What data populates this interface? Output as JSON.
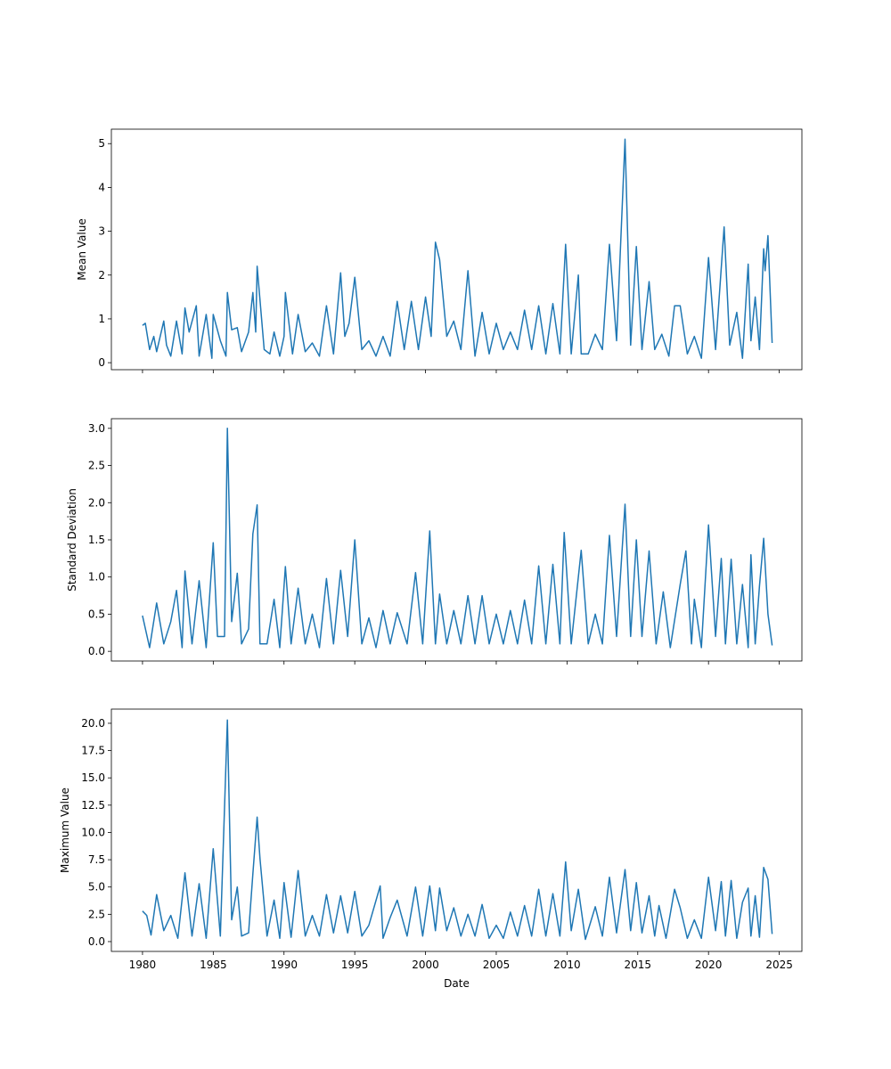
{
  "chart_data": [
    {
      "type": "line",
      "ylabel": "Mean Value",
      "xlabel": "",
      "xlim": [
        1977.8,
        2026.6
      ],
      "ylim": [
        -0.16,
        5.33
      ],
      "yticks": [
        0,
        1,
        2,
        3,
        4,
        5
      ],
      "ytick_labels": [
        "0",
        "1",
        "2",
        "3",
        "4",
        "5"
      ],
      "color": "#1f77b4",
      "x": [
        1980.0,
        1980.2,
        1980.5,
        1980.8,
        1981.0,
        1981.5,
        1981.7,
        1982.0,
        1982.4,
        1982.8,
        1983.0,
        1983.3,
        1983.8,
        1984.0,
        1984.5,
        1984.9,
        1985.0,
        1985.5,
        1985.9,
        1986.0,
        1986.3,
        1986.7,
        1987.0,
        1987.5,
        1987.8,
        1988.0,
        1988.1,
        1988.6,
        1989.0,
        1989.3,
        1989.7,
        1990.0,
        1990.1,
        1990.6,
        1991.0,
        1991.5,
        1992.0,
        1992.5,
        1993.0,
        1993.5,
        1994.0,
        1994.3,
        1994.6,
        1995.0,
        1995.5,
        1996.0,
        1996.5,
        1997.0,
        1997.5,
        1998.0,
        1998.5,
        1999.0,
        1999.5,
        2000.0,
        2000.4,
        2000.7,
        2001.0,
        2001.5,
        2002.0,
        2002.5,
        2003.0,
        2003.5,
        2004.0,
        2004.5,
        2005.0,
        2005.5,
        2006.0,
        2006.5,
        2007.0,
        2007.5,
        2008.0,
        2008.5,
        2009.0,
        2009.5,
        2009.9,
        2010.3,
        2010.8,
        2011.0,
        2011.5,
        2012.0,
        2012.5,
        2013.0,
        2013.5,
        2014.1,
        2014.5,
        2014.9,
        2015.3,
        2015.8,
        2016.2,
        2016.7,
        2017.2,
        2017.6,
        2018.0,
        2018.5,
        2019.0,
        2019.5,
        2020.0,
        2020.5,
        2021.1,
        2021.5,
        2022.0,
        2022.4,
        2022.8,
        2023.0,
        2023.3,
        2023.6,
        2023.9,
        2024.0,
        2024.2,
        2024.5
      ],
      "y": [
        0.85,
        0.9,
        0.3,
        0.6,
        0.25,
        0.95,
        0.4,
        0.15,
        0.95,
        0.2,
        1.25,
        0.7,
        1.3,
        0.15,
        1.1,
        0.1,
        1.1,
        0.5,
        0.15,
        1.6,
        0.75,
        0.8,
        0.25,
        0.7,
        1.6,
        0.7,
        2.2,
        0.3,
        0.2,
        0.7,
        0.15,
        0.6,
        1.6,
        0.2,
        1.1,
        0.25,
        0.45,
        0.15,
        1.3,
        0.2,
        2.05,
        0.6,
        0.9,
        1.95,
        0.3,
        0.5,
        0.15,
        0.6,
        0.15,
        1.4,
        0.3,
        1.4,
        0.3,
        1.5,
        0.6,
        2.75,
        2.35,
        0.6,
        0.95,
        0.3,
        2.1,
        0.15,
        1.15,
        0.2,
        0.9,
        0.3,
        0.7,
        0.3,
        1.2,
        0.3,
        1.3,
        0.2,
        1.35,
        0.2,
        2.7,
        0.2,
        2.0,
        0.2,
        0.2,
        0.65,
        0.3,
        2.7,
        0.5,
        5.1,
        0.4,
        2.65,
        0.3,
        1.85,
        0.3,
        0.65,
        0.15,
        1.3,
        1.3,
        0.2,
        0.6,
        0.1,
        2.4,
        0.3,
        3.1,
        0.4,
        1.15,
        0.1,
        2.25,
        0.5,
        1.5,
        0.3,
        2.6,
        2.1,
        2.9,
        0.45
      ]
    },
    {
      "type": "line",
      "ylabel": "Standard Deviation",
      "xlabel": "",
      "xlim": [
        1977.8,
        2026.6
      ],
      "ylim": [
        -0.13,
        3.13
      ],
      "yticks": [
        0,
        0.5,
        1,
        1.5,
        2,
        2.5,
        3
      ],
      "ytick_labels": [
        "0.0",
        "0.5",
        "1.0",
        "1.5",
        "2.0",
        "2.5",
        "3.0"
      ],
      "color": "#1f77b4",
      "x": [
        1980.0,
        1980.5,
        1981.0,
        1981.5,
        1982.0,
        1982.4,
        1982.8,
        1983.0,
        1983.5,
        1984.0,
        1984.5,
        1985.0,
        1985.3,
        1985.8,
        1986.0,
        1986.3,
        1986.7,
        1987.0,
        1987.5,
        1987.8,
        1988.1,
        1988.3,
        1988.8,
        1989.3,
        1989.7,
        1990.1,
        1990.5,
        1991.0,
        1991.5,
        1992.0,
        1992.5,
        1993.0,
        1993.5,
        1994.0,
        1994.5,
        1995.0,
        1995.5,
        1996.0,
        1996.5,
        1997.0,
        1997.5,
        1998.0,
        1998.7,
        1999.3,
        1999.8,
        2000.3,
        2000.7,
        2001.0,
        2001.5,
        2002.0,
        2002.5,
        2003.0,
        2003.5,
        2004.0,
        2004.5,
        2005.0,
        2005.5,
        2006.0,
        2006.5,
        2007.0,
        2007.5,
        2008.0,
        2008.5,
        2009.0,
        2009.5,
        2009.8,
        2010.3,
        2011.0,
        2011.5,
        2012.0,
        2012.5,
        2013.0,
        2013.5,
        2014.1,
        2014.5,
        2014.9,
        2015.3,
        2015.8,
        2016.3,
        2016.8,
        2017.3,
        2018.0,
        2018.4,
        2018.8,
        2019.0,
        2019.5,
        2020.0,
        2020.5,
        2020.9,
        2021.2,
        2021.6,
        2022.0,
        2022.4,
        2022.8,
        2023.0,
        2023.3,
        2023.6,
        2023.9,
        2024.2,
        2024.5
      ],
      "y": [
        0.48,
        0.05,
        0.65,
        0.1,
        0.4,
        0.82,
        0.05,
        1.08,
        0.1,
        0.95,
        0.05,
        1.46,
        0.2,
        0.2,
        3.0,
        0.4,
        1.05,
        0.1,
        0.3,
        1.58,
        1.97,
        0.1,
        0.1,
        0.7,
        0.05,
        1.14,
        0.1,
        0.85,
        0.1,
        0.5,
        0.05,
        0.98,
        0.1,
        1.09,
        0.2,
        1.5,
        0.1,
        0.45,
        0.05,
        0.55,
        0.1,
        0.52,
        0.1,
        1.06,
        0.1,
        1.62,
        0.1,
        0.77,
        0.1,
        0.55,
        0.1,
        0.75,
        0.1,
        0.75,
        0.1,
        0.5,
        0.1,
        0.55,
        0.1,
        0.69,
        0.1,
        1.15,
        0.1,
        1.17,
        0.1,
        1.6,
        0.1,
        1.36,
        0.1,
        0.5,
        0.1,
        1.56,
        0.2,
        1.98,
        0.2,
        1.5,
        0.2,
        1.35,
        0.1,
        0.8,
        0.05,
        0.9,
        1.35,
        0.1,
        0.7,
        0.05,
        1.7,
        0.2,
        1.25,
        0.1,
        1.24,
        0.1,
        0.9,
        0.05,
        1.3,
        0.1,
        0.88,
        1.52,
        0.5,
        0.08
      ]
    },
    {
      "type": "line",
      "ylabel": "Maximum Value",
      "xlabel": "Date",
      "xlim": [
        1977.8,
        2026.6
      ],
      "ylim": [
        -0.9,
        21.3
      ],
      "yticks": [
        0,
        2.5,
        5,
        7.5,
        10,
        12.5,
        15,
        17.5,
        20
      ],
      "ytick_labels": [
        "0.0",
        "2.5",
        "5.0",
        "7.5",
        "10.0",
        "12.5",
        "15.0",
        "17.5",
        "20.0"
      ],
      "xticks": [
        1980,
        1985,
        1990,
        1995,
        2000,
        2005,
        2010,
        2015,
        2020,
        2025
      ],
      "xtick_labels": [
        "1980",
        "1985",
        "1990",
        "1995",
        "2000",
        "2005",
        "2010",
        "2015",
        "2020",
        "2025"
      ],
      "color": "#1f77b4",
      "x": [
        1980.0,
        1980.3,
        1980.6,
        1981.0,
        1981.5,
        1982.0,
        1982.5,
        1983.0,
        1983.5,
        1984.0,
        1984.5,
        1985.0,
        1985.5,
        1986.0,
        1986.3,
        1986.7,
        1987.0,
        1987.5,
        1987.8,
        1988.1,
        1988.3,
        1988.8,
        1989.3,
        1989.7,
        1990.0,
        1990.5,
        1991.0,
        1991.5,
        1992.0,
        1992.5,
        1993.0,
        1993.5,
        1994.0,
        1994.5,
        1995.0,
        1995.5,
        1996.0,
        1996.8,
        1997.0,
        1997.5,
        1998.0,
        1998.7,
        1999.3,
        1999.8,
        2000.3,
        2000.7,
        2001.0,
        2001.5,
        2002.0,
        2002.5,
        2003.0,
        2003.5,
        2004.0,
        2004.5,
        2005.0,
        2005.5,
        2006.0,
        2006.5,
        2007.0,
        2007.5,
        2008.0,
        2008.5,
        2009.0,
        2009.5,
        2009.9,
        2010.3,
        2010.8,
        2011.3,
        2012.0,
        2012.5,
        2013.0,
        2013.5,
        2014.1,
        2014.5,
        2014.9,
        2015.3,
        2015.8,
        2016.2,
        2016.5,
        2017.0,
        2017.6,
        2018.0,
        2018.5,
        2019.0,
        2019.5,
        2020.0,
        2020.5,
        2020.9,
        2021.2,
        2021.6,
        2022.0,
        2022.4,
        2022.8,
        2023.0,
        2023.3,
        2023.6,
        2023.9,
        2024.2,
        2024.5
      ],
      "y": [
        2.8,
        2.4,
        0.6,
        4.3,
        1.0,
        2.4,
        0.3,
        6.3,
        0.5,
        5.3,
        0.3,
        8.5,
        0.5,
        20.3,
        2.0,
        5.0,
        0.5,
        0.8,
        6.2,
        11.4,
        7.6,
        0.5,
        3.8,
        0.3,
        5.4,
        0.4,
        6.5,
        0.5,
        2.4,
        0.5,
        4.3,
        0.8,
        4.2,
        0.8,
        4.6,
        0.5,
        1.5,
        5.1,
        0.3,
        2.2,
        3.8,
        0.5,
        5.0,
        0.5,
        5.1,
        1.0,
        4.9,
        1.0,
        3.1,
        0.5,
        2.5,
        0.5,
        3.4,
        0.3,
        1.5,
        0.3,
        2.7,
        0.5,
        3.3,
        0.5,
        4.8,
        0.5,
        4.4,
        0.5,
        7.3,
        1.0,
        4.8,
        0.2,
        3.2,
        0.5,
        5.9,
        0.8,
        6.6,
        1.0,
        5.4,
        0.8,
        4.2,
        0.5,
        3.3,
        0.3,
        4.8,
        3.1,
        0.3,
        2.0,
        0.3,
        5.9,
        1.0,
        5.5,
        0.5,
        5.6,
        0.3,
        3.6,
        4.9,
        0.5,
        4.2,
        0.4,
        6.8,
        5.7,
        0.7
      ]
    }
  ]
}
